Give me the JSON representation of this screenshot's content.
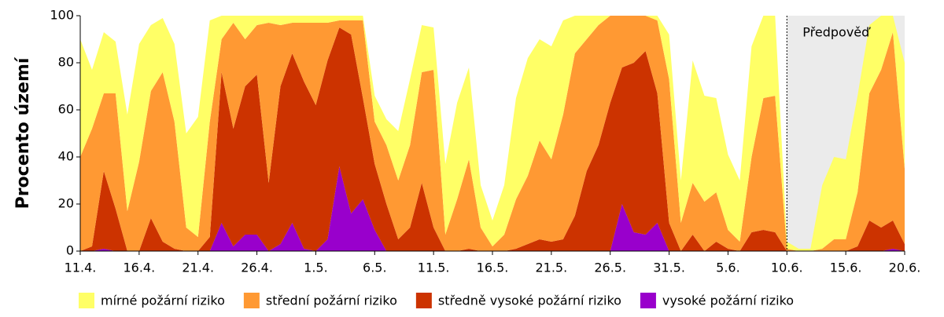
{
  "chart_data": {
    "type": "stacked_area",
    "y_label": "Procento území",
    "categories": [
      "11.4.",
      null,
      null,
      null,
      null,
      "16.4.",
      null,
      null,
      null,
      null,
      "21.4.",
      null,
      null,
      null,
      null,
      "26.4.",
      null,
      null,
      null,
      null,
      "1.5.",
      null,
      null,
      null,
      null,
      "6.5.",
      null,
      null,
      null,
      null,
      "11.5.",
      null,
      null,
      null,
      null,
      "16.5.",
      null,
      null,
      null,
      null,
      "21.5.",
      null,
      null,
      null,
      null,
      "26.5.",
      null,
      null,
      null,
      null,
      "31.5.",
      null,
      null,
      null,
      null,
      "5.6.",
      null,
      null,
      null,
      null,
      "10.6.",
      null,
      null,
      null,
      null,
      "15.6.",
      null,
      null,
      null,
      null,
      "20.6."
    ],
    "series": [
      {
        "name": "mírné požární riziko",
        "color": "#ffff66",
        "values": [
          50,
          25,
          26,
          22,
          41,
          50,
          28,
          23,
          33,
          40,
          51,
          43,
          10,
          3,
          10,
          4,
          3,
          4,
          3,
          3,
          3,
          3,
          2,
          2,
          2,
          11,
          11,
          21,
          28,
          20,
          18,
          30,
          41,
          39,
          18,
          11,
          21,
          43,
          50,
          43,
          48,
          40,
          16,
          10,
          4,
          0,
          0,
          0,
          0,
          2,
          19,
          18,
          52,
          45,
          40,
          32,
          26,
          47,
          35,
          34,
          3,
          1,
          1,
          27,
          35,
          34,
          41,
          29,
          23,
          7,
          45
        ]
      },
      {
        "name": "střední požární riziko",
        "color": "#ff9933",
        "values": [
          40,
          50,
          33,
          49,
          17,
          38,
          54,
          72,
          54,
          10,
          6,
          49,
          14,
          45,
          20,
          21,
          68,
          26,
          13,
          25,
          35,
          16,
          3,
          6,
          33,
          18,
          25,
          25,
          35,
          47,
          67,
          7,
          22,
          38,
          10,
          2,
          7,
          21,
          29,
          42,
          35,
          53,
          69,
          56,
          51,
          37,
          22,
          20,
          15,
          31,
          61,
          12,
          22,
          21,
          21,
          8,
          4,
          32,
          56,
          58,
          1,
          0,
          0,
          1,
          5,
          5,
          23,
          54,
          67,
          80,
          32
        ]
      },
      {
        "name": "středně vysoké požární riziko",
        "color": "#cc3300",
        "values": [
          0,
          2,
          33,
          18,
          0,
          0,
          14,
          4,
          1,
          0,
          0,
          6,
          64,
          50,
          63,
          68,
          29,
          67,
          72,
          71,
          62,
          76,
          59,
          76,
          43,
          28,
          20,
          5,
          10,
          29,
          10,
          0,
          0,
          1,
          0,
          0,
          0,
          1,
          3,
          5,
          4,
          5,
          15,
          34,
          45,
          63,
          58,
          72,
          78,
          55,
          12,
          0,
          7,
          0,
          4,
          1,
          0,
          8,
          9,
          8,
          0,
          0,
          0,
          0,
          0,
          0,
          2,
          13,
          10,
          12,
          3
        ]
      },
      {
        "name": "vysoké požární riziko",
        "color": "#9900cc",
        "values": [
          0,
          0,
          1,
          0,
          0,
          0,
          0,
          0,
          0,
          0,
          0,
          0,
          12,
          2,
          7,
          7,
          0,
          3,
          12,
          1,
          0,
          5,
          36,
          16,
          22,
          9,
          0,
          0,
          0,
          0,
          0,
          0,
          0,
          0,
          0,
          0,
          0,
          0,
          0,
          0,
          0,
          0,
          0,
          0,
          0,
          0,
          20,
          8,
          7,
          12,
          0,
          0,
          0,
          0,
          0,
          0,
          0,
          0,
          0,
          0,
          0,
          0,
          0,
          0,
          0,
          0,
          0,
          0,
          0,
          1,
          0
        ]
      }
    ],
    "ylim": [
      0,
      100
    ],
    "yticks": [
      0,
      20,
      40,
      60,
      80,
      100
    ],
    "forecast": {
      "label": "Předpověď",
      "start": "10.6."
    }
  }
}
